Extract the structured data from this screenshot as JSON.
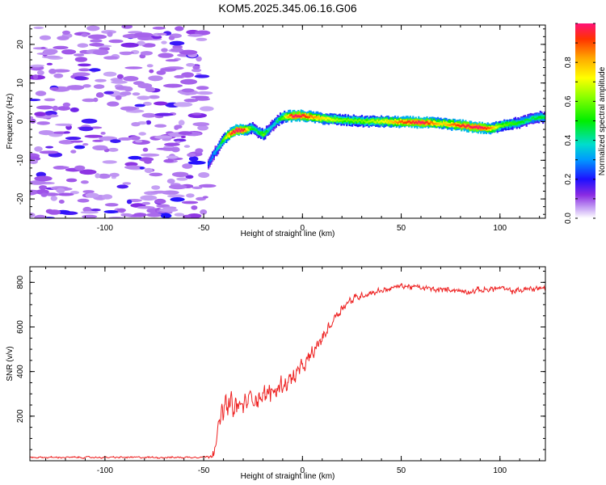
{
  "title": "KOM5.2025.345.06.16.G06",
  "chart_data": [
    {
      "type": "heatmap",
      "name": "spectrogram",
      "xlabel": "Height of straight line (km)",
      "ylabel": "Frequency (Hz)",
      "xlim": [
        -138,
        123
      ],
      "ylim": [
        -25,
        25
      ],
      "xticks": [
        -100,
        -50,
        0,
        50,
        100
      ],
      "yticks": [
        -20,
        -10,
        0,
        10,
        20
      ],
      "xtick_labels": [
        "-100",
        "-50",
        "0",
        "50",
        "100"
      ],
      "ytick_labels": [
        "-20",
        "-10",
        "0",
        "10",
        "20"
      ],
      "colorbar": {
        "label": "Normalized spectral amplitude",
        "range": [
          0,
          1
        ],
        "ticks": [
          0,
          0.2,
          0.4,
          0.6,
          0.8
        ],
        "tick_labels": [
          "0.0",
          "0.2",
          "0.4",
          "0.6",
          "0.8"
        ]
      },
      "noise_region_x": [
        -138,
        -48
      ],
      "ridge": {
        "x": [
          -48,
          -46,
          -44,
          -42,
          -40,
          -38,
          -36,
          -34,
          -32,
          -30,
          -28,
          -26,
          -24,
          -22,
          -20,
          -18,
          -16,
          -14,
          -12,
          -10,
          -8,
          -5,
          0,
          5,
          10,
          20,
          30,
          40,
          50,
          60,
          70,
          80,
          90,
          95,
          100,
          110,
          115,
          120,
          123
        ],
        "freq": [
          -11,
          -9,
          -7.5,
          -6,
          -4.5,
          -3.5,
          -2.8,
          -2.3,
          -2.2,
          -2.3,
          -2.0,
          -1.6,
          -2.2,
          -3.0,
          -3.3,
          -2.4,
          -1.3,
          -0.2,
          0.6,
          1.2,
          1.4,
          1.5,
          1.5,
          1.2,
          0.8,
          0.4,
          0.1,
          0.0,
          -0.1,
          -0.2,
          -0.5,
          -1.0,
          -1.6,
          -1.9,
          -1.0,
          -0.2,
          0.6,
          1.2,
          1.0
        ],
        "amplitude": [
          0.25,
          0.3,
          0.35,
          0.45,
          0.6,
          0.8,
          0.95,
          1.0,
          1.0,
          0.95,
          0.7,
          0.5,
          0.45,
          0.5,
          0.6,
          0.45,
          0.35,
          0.4,
          0.5,
          0.6,
          0.8,
          1.0,
          0.95,
          0.85,
          0.75,
          0.6,
          0.6,
          0.7,
          0.9,
          1.0,
          0.75,
          0.95,
          1.0,
          0.85,
          0.6,
          0.5,
          0.45,
          0.5,
          0.45
        ]
      }
    },
    {
      "type": "line",
      "name": "snr",
      "xlabel": "Height of straight line (km)",
      "ylabel": "SNR (v/v)",
      "xlim": [
        -138,
        123
      ],
      "ylim": [
        0,
        870
      ],
      "xticks": [
        -100,
        -50,
        0,
        50,
        100
      ],
      "yticks": [
        200,
        400,
        600,
        800
      ],
      "xtick_labels": [
        "-100",
        "-50",
        "0",
        "50",
        "100"
      ],
      "ytick_labels": [
        "200",
        "400",
        "600",
        "800"
      ],
      "color": "#ee2222",
      "trend": {
        "x": [
          -138,
          -100,
          -60,
          -48,
          -46,
          -44,
          -42,
          -40,
          -38,
          -36,
          -34,
          -32,
          -30,
          -28,
          -26,
          -24,
          -22,
          -20,
          -18,
          -16,
          -14,
          -12,
          -10,
          -8,
          -6,
          -4,
          -2,
          0,
          2,
          4,
          6,
          8,
          10,
          12,
          14,
          16,
          18,
          20,
          22,
          24,
          26,
          28,
          30,
          34,
          38,
          42,
          46,
          50,
          55,
          60,
          65,
          70,
          75,
          80,
          85,
          90,
          95,
          100,
          105,
          110,
          115,
          120,
          123
        ],
        "y": [
          15,
          15,
          15,
          18,
          30,
          80,
          160,
          240,
          240,
          250,
          240,
          240,
          250,
          265,
          280,
          290,
          290,
          290,
          295,
          305,
          315,
          330,
          345,
          355,
          365,
          380,
          400,
          415,
          440,
          465,
          490,
          520,
          550,
          580,
          610,
          640,
          665,
          690,
          705,
          715,
          725,
          735,
          742,
          752,
          760,
          768,
          775,
          785,
          780,
          775,
          770,
          765,
          770,
          760,
          760,
          765,
          770,
          775,
          760,
          765,
          770,
          775,
          775
        ]
      },
      "noise_amplitude": {
        "x": [
          -138,
          -48,
          -46,
          -40,
          -30,
          -20,
          -10,
          0,
          10,
          20,
          30,
          40,
          50,
          123
        ],
        "amp": [
          5,
          6,
          30,
          80,
          70,
          65,
          60,
          50,
          45,
          35,
          22,
          18,
          18,
          20
        ]
      }
    }
  ]
}
